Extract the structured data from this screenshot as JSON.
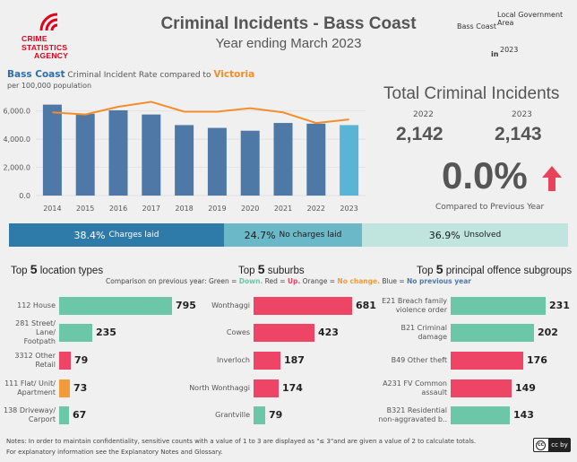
{
  "header": {
    "logo_lines": [
      "CRIME",
      "STATISTICS",
      "AGENCY"
    ],
    "title": "Criminal Incidents - Bass Coast",
    "subtitle": "Year ending March 2023",
    "lga_label": "Local Government Area",
    "lga_value": "Bass Coast",
    "in_label": "in",
    "year_value": "2023"
  },
  "rate_chart": {
    "heading_area": "Bass Coast",
    "heading_mid": " Criminal Incident Rate compared to ",
    "heading_compare": "Victoria",
    "sub": "per 100,000 population"
  },
  "chart_data": {
    "type": "bar",
    "categories": [
      "2014",
      "2015",
      "2016",
      "2017",
      "2018",
      "2019",
      "2020",
      "2021",
      "2022",
      "2023"
    ],
    "series": [
      {
        "name": "Bass Coast",
        "values": [
          6450,
          5800,
          6050,
          5750,
          5000,
          4800,
          4600,
          5150,
          5100,
          5000
        ]
      },
      {
        "name": "Victoria",
        "values": [
          5900,
          5750,
          6300,
          6650,
          5950,
          5950,
          6200,
          5900,
          5150,
          5400
        ]
      }
    ],
    "ylim": [
      0,
      7000
    ],
    "yticks": [
      "0.0",
      "2,000.0",
      "4,000.0",
      "6,000.0"
    ],
    "ytick_values": [
      0,
      2000,
      4000,
      6000
    ],
    "colors": {
      "bar": "#4e79a7",
      "bar_current": "#5ab4d6",
      "line": "#f28e2b"
    }
  },
  "total": {
    "heading": "Total Criminal Incidents",
    "prev_year": "2022",
    "curr_year": "2023",
    "prev_value": "2,142",
    "curr_value": "2,143",
    "change": "0.0%",
    "change_label": "Compared to Previous Year",
    "arrow_color": "#e8435b"
  },
  "outcomes": [
    {
      "pct": "38.4%",
      "label": "Charges laid",
      "color": "#2e7aa8",
      "text_color": "#ffffff",
      "share": 0.384
    },
    {
      "pct": "24.7%",
      "label": "No charges laid",
      "color": "#6ab8c8",
      "text_color": "#1a1a1a",
      "share": 0.247
    },
    {
      "pct": "36.9%",
      "label": "Unsolved",
      "color": "#bfe5de",
      "text_color": "#1a1a1a",
      "share": 0.369
    }
  ],
  "legend": {
    "prefix": "Comparison on previous year: Green = ",
    "down": "Down.",
    "red_txt": " Red = ",
    "up": "Up.",
    "orange_txt": " Orange = ",
    "nochange": "No change.",
    "blue_txt": " Blue = ",
    "noprev": "No previous year"
  },
  "colors": {
    "green": "#6cc7a8",
    "red": "#ee4466",
    "orange": "#f39a3a",
    "blue": "#4e79a7"
  },
  "top": {
    "top_word": "Top",
    "n": "5",
    "locations": {
      "heading": "location types",
      "max": 795,
      "items": [
        {
          "label": "112 House",
          "value": 795,
          "color": "#6cc7a8"
        },
        {
          "label": "281 Street/ Lane/ Footpath",
          "value": 235,
          "color": "#6cc7a8"
        },
        {
          "label": "3312 Other Retail",
          "value": 79,
          "color": "#ee4466"
        },
        {
          "label": "111 Flat/ Unit/ Apartment",
          "value": 73,
          "color": "#f39a3a"
        },
        {
          "label": "138 Driveway/ Carport",
          "value": 67,
          "color": "#6cc7a8"
        }
      ]
    },
    "suburbs": {
      "heading": "suburbs",
      "max": 681,
      "items": [
        {
          "label": "Wonthaggi",
          "value": 681,
          "color": "#ee4466"
        },
        {
          "label": "Cowes",
          "value": 423,
          "color": "#ee4466"
        },
        {
          "label": "Inverloch",
          "value": 187,
          "color": "#ee4466"
        },
        {
          "label": "North Wonthaggi",
          "value": 174,
          "color": "#ee4466"
        },
        {
          "label": "Grantville",
          "value": 79,
          "color": "#6cc7a8"
        }
      ]
    },
    "offences": {
      "heading": "principal offence subgroups",
      "max": 231,
      "items": [
        {
          "label": "E21 Breach family violence order",
          "value": 231,
          "color": "#6cc7a8"
        },
        {
          "label": "B21 Criminal damage",
          "value": 202,
          "color": "#6cc7a8"
        },
        {
          "label": "B49 Other theft",
          "value": 176,
          "color": "#ee4466"
        },
        {
          "label": "A231 FV Common assault",
          "value": 149,
          "color": "#ee4466"
        },
        {
          "label": "B321 Residential non-aggravated b..",
          "value": 143,
          "color": "#6cc7a8"
        }
      ]
    }
  },
  "notes": {
    "line1": "Notes:  In order to maintain confidentiality, sensitive counts with a value of 1 to 3  are displayed as \"≤ 3\"and are given a value of 2 to calculate totals.",
    "line2": "For explanatory information see the Explanatory Notes and Glossary.",
    "license": "cc by"
  }
}
